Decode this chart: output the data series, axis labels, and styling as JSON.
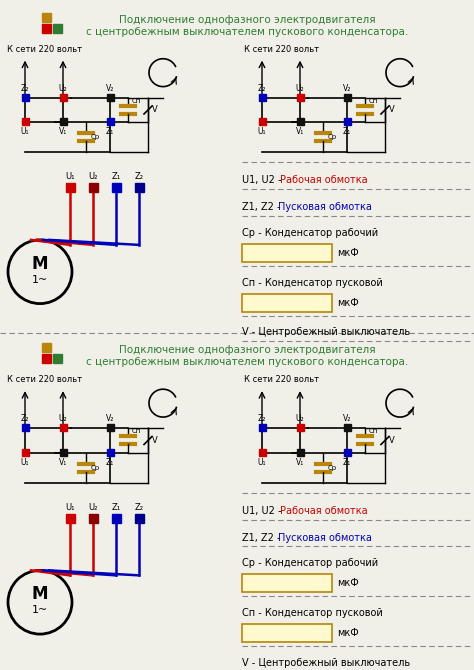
{
  "title_line1": "Подключение однофазного электродвигателя",
  "title_line2": "с центробежным выключателем пускового конденсатора.",
  "title_color": "#2e7d32",
  "bg_color": "#f0f0e8",
  "sq_gold": "#b8860b",
  "sq_red": "#cc0000",
  "sq_green": "#2e7d32",
  "col_red": "#cc0000",
  "col_blue": "#0000bb",
  "col_black": "#111111",
  "col_darkred": "#8b0000",
  "col_gold": "#b8860b",
  "dashed_color": "#888888",
  "mkf_label": "мкФ",
  "text_u1u2": "U1, U2 - ",
  "text_rabochaya": "Рабочая обмотка",
  "text_z1z2": "Z1, Z2 - ",
  "text_puskovaya": "Пусковая обмотка",
  "text_cr": "Ср - Конденсатор рабочий",
  "text_cn": "Сп - Конденсатор пусковой",
  "text_v": "V - Центробежный выключатель",
  "text_kseti": "К сети 220 вольт",
  "text_M": "M",
  "text_1til": "1~"
}
